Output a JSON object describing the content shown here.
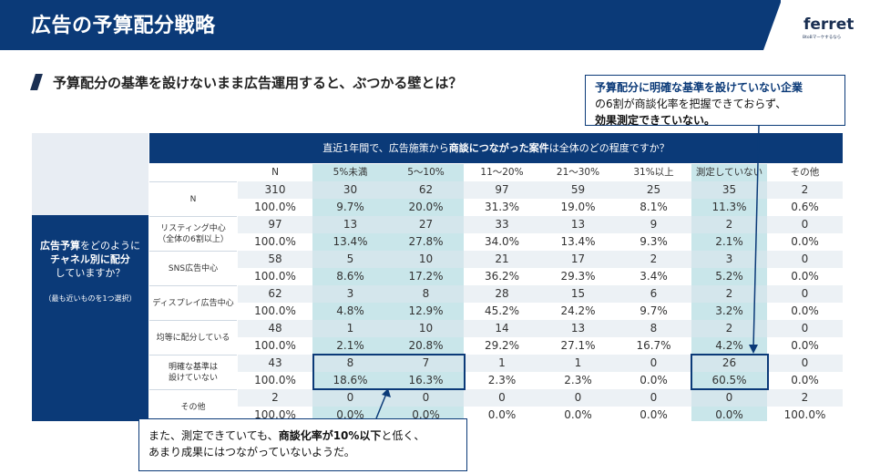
{
  "header": {
    "title": "広告の予算配分戦略",
    "logo_text": "ferret",
    "logo_sub": "BtoBマーケするなら"
  },
  "subheading": "予算配分の基準を設けないまま広告運用すると、ぶつかる壁とは？",
  "callout_top": {
    "line1": "予算配分に明確な基準を設けていない企業",
    "line2": "の6割が商談化率を把握できておらず、",
    "line3": "効果測定できていない。"
  },
  "callout_bottom": {
    "line1_a": "また、測定できていても、",
    "line1_b": "商談化率が10%以下",
    "line1_c": "と低く、",
    "line2": "あまり成果にはつながっていないようだ。"
  },
  "question_panel": {
    "line1_a": "広告予算",
    "line1_b": "をどのように",
    "line2": "チャネル別に配分",
    "line3": "していますか？",
    "note": "（最も近いものを1つ選択）"
  },
  "question_header": {
    "a": "直近1年間で、広告施策から",
    "b": "商談につながった案件",
    "c": "は全体のどの程度ですか？"
  },
  "columns": [
    "N",
    "5%未満",
    "5〜10%",
    "11〜20%",
    "21〜30%",
    "31%以上",
    "測定していない",
    "その他"
  ],
  "rows": [
    {
      "label": [
        "N"
      ],
      "counts": [
        "310",
        "30",
        "62",
        "97",
        "59",
        "25",
        "35",
        "2"
      ],
      "pcts": [
        "100.0%",
        "9.7%",
        "20.0%",
        "31.3%",
        "19.0%",
        "8.1%",
        "11.3%",
        "0.6%"
      ]
    },
    {
      "label": [
        "リスティング中心",
        "（全体の6割以上）"
      ],
      "counts": [
        "97",
        "13",
        "27",
        "33",
        "13",
        "9",
        "2",
        "0"
      ],
      "pcts": [
        "100.0%",
        "13.4%",
        "27.8%",
        "34.0%",
        "13.4%",
        "9.3%",
        "2.1%",
        "0.0%"
      ]
    },
    {
      "label": [
        "SNS広告中心"
      ],
      "counts": [
        "58",
        "5",
        "10",
        "21",
        "17",
        "2",
        "3",
        "0"
      ],
      "pcts": [
        "100.0%",
        "8.6%",
        "17.2%",
        "36.2%",
        "29.3%",
        "3.4%",
        "5.2%",
        "0.0%"
      ]
    },
    {
      "label": [
        "ディスプレイ広告中心"
      ],
      "counts": [
        "62",
        "3",
        "8",
        "28",
        "15",
        "6",
        "2",
        "0"
      ],
      "pcts": [
        "100.0%",
        "4.8%",
        "12.9%",
        "45.2%",
        "24.2%",
        "9.7%",
        "3.2%",
        "0.0%"
      ]
    },
    {
      "label": [
        "均等に配分している"
      ],
      "counts": [
        "48",
        "1",
        "10",
        "14",
        "13",
        "8",
        "2",
        "0"
      ],
      "pcts": [
        "100.0%",
        "2.1%",
        "20.8%",
        "29.2%",
        "27.1%",
        "16.7%",
        "4.2%",
        "0.0%"
      ]
    },
    {
      "label": [
        "明確な基準は",
        "設けていない"
      ],
      "counts": [
        "43",
        "8",
        "7",
        "1",
        "1",
        "0",
        "26",
        "0"
      ],
      "pcts": [
        "100.0%",
        "18.6%",
        "16.3%",
        "2.3%",
        "2.3%",
        "0.0%",
        "60.5%",
        "0.0%"
      ]
    },
    {
      "label": [
        "その他"
      ],
      "counts": [
        "2",
        "0",
        "0",
        "0",
        "0",
        "0",
        "0",
        "2"
      ],
      "pcts": [
        "100.0%",
        "0.0%",
        "0.0%",
        "0.0%",
        "0.0%",
        "0.0%",
        "0.0%",
        "100.0%"
      ]
    }
  ],
  "colors": {
    "navy": "#0b3a78",
    "band_light": "#e3eaf0",
    "highlight_col": "#c9e6ea"
  }
}
